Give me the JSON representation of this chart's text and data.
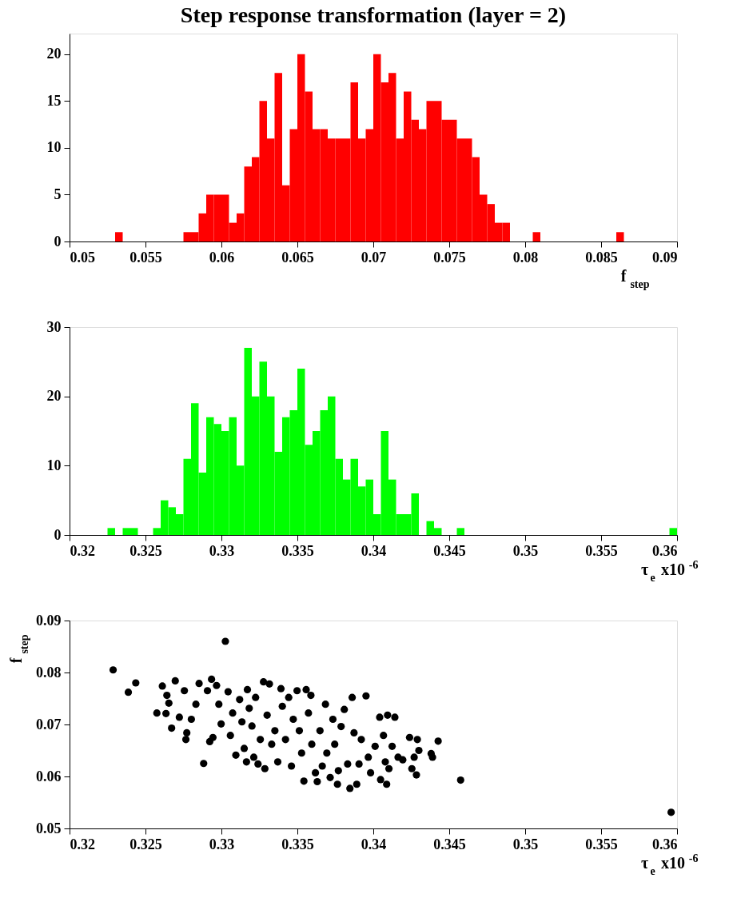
{
  "chart_data": [
    {
      "type": "histogram",
      "title": "Step response transformation (layer = 2)",
      "xlabel": "f$_{step}$",
      "color": "#ff0000",
      "xlim": [
        0.05,
        0.09
      ],
      "ylim": [
        0,
        22.2
      ],
      "xticks": [
        0.05,
        0.055,
        0.06,
        0.065,
        0.07,
        0.075,
        0.08,
        0.085,
        0.09
      ],
      "yticks": [
        0,
        5,
        10,
        15,
        20
      ],
      "bins": [
        0.05,
        0.0505,
        0.051,
        0.0515,
        0.052,
        0.0525,
        0.053,
        0.0535,
        0.054,
        0.0545,
        0.055,
        0.0555,
        0.056,
        0.0565,
        0.057,
        0.0575,
        0.058,
        0.0585,
        0.059,
        0.0595,
        0.06,
        0.0605,
        0.061,
        0.0615,
        0.062,
        0.0625,
        0.063,
        0.0635,
        0.064,
        0.0645,
        0.065,
        0.0655,
        0.066,
        0.0665,
        0.067,
        0.0675,
        0.068,
        0.0685,
        0.069,
        0.0695,
        0.07,
        0.0705,
        0.071,
        0.0715,
        0.072,
        0.0725,
        0.073,
        0.0735,
        0.074,
        0.0745,
        0.075,
        0.0755,
        0.076,
        0.0765,
        0.077,
        0.0775,
        0.078,
        0.0785,
        0.079,
        0.0795,
        0.08,
        0.0805,
        0.081,
        0.0815,
        0.082,
        0.0825,
        0.083,
        0.0835,
        0.084,
        0.0845,
        0.085,
        0.0855,
        0.086,
        0.0865,
        0.087,
        0.0875,
        0.088,
        0.0885,
        0.089,
        0.0895,
        0.09
      ],
      "values": [
        0,
        0,
        0,
        0,
        0,
        0,
        1,
        0,
        0,
        0,
        0,
        0,
        0,
        0,
        0,
        1,
        1,
        3,
        5,
        5,
        5,
        2,
        3,
        8,
        9,
        15,
        11,
        18,
        6,
        12,
        20,
        16,
        12,
        12,
        11,
        11,
        11,
        17,
        11,
        12,
        20,
        17,
        18,
        11,
        16,
        13,
        12,
        15,
        15,
        13,
        13,
        11,
        11,
        9,
        5,
        4,
        2,
        2,
        0,
        0,
        0,
        1,
        0,
        0,
        0,
        0,
        0,
        0,
        0,
        0,
        0,
        0,
        1,
        0,
        0,
        0,
        0,
        0,
        0,
        0
      ]
    },
    {
      "type": "histogram",
      "xlabel": "τ$_{e}$",
      "annotations": [
        "x10$^{-6}$"
      ],
      "color": "#00ff00",
      "xlim": [
        0.32,
        0.36
      ],
      "ylim": [
        0,
        30
      ],
      "xticks": [
        0.32,
        0.325,
        0.33,
        0.335,
        0.34,
        0.345,
        0.35,
        0.355,
        0.36
      ],
      "yticks": [
        0,
        10,
        20,
        30
      ],
      "bins": [
        0.32,
        0.3205,
        0.321,
        0.3215,
        0.322,
        0.3225,
        0.323,
        0.3235,
        0.324,
        0.3245,
        0.325,
        0.3255,
        0.326,
        0.3265,
        0.327,
        0.3275,
        0.328,
        0.3285,
        0.329,
        0.3295,
        0.33,
        0.3305,
        0.331,
        0.3315,
        0.332,
        0.3325,
        0.333,
        0.3335,
        0.334,
        0.3345,
        0.335,
        0.3355,
        0.336,
        0.3365,
        0.337,
        0.3375,
        0.338,
        0.3385,
        0.339,
        0.3395,
        0.34,
        0.3405,
        0.341,
        0.3415,
        0.342,
        0.3425,
        0.343,
        0.3435,
        0.344,
        0.3445,
        0.345,
        0.3455,
        0.346,
        0.3465,
        0.347,
        0.3475,
        0.348,
        0.3485,
        0.349,
        0.3495,
        0.35,
        0.3505,
        0.351,
        0.3515,
        0.352,
        0.3525,
        0.353,
        0.3535,
        0.354,
        0.3545,
        0.355,
        0.3555,
        0.356,
        0.3565,
        0.357,
        0.3575,
        0.358,
        0.3585,
        0.359,
        0.3595,
        0.36
      ],
      "values": [
        0,
        0,
        0,
        0,
        0,
        1,
        0,
        1,
        1,
        0,
        0,
        1,
        5,
        4,
        3,
        11,
        19,
        9,
        17,
        16,
        15,
        17,
        10,
        27,
        20,
        25,
        20,
        12,
        17,
        18,
        24,
        13,
        15,
        18,
        20,
        11,
        8,
        11,
        7,
        8,
        3,
        15,
        8,
        3,
        3,
        6,
        0,
        2,
        1,
        0,
        0,
        1,
        0,
        0,
        0,
        0,
        0,
        0,
        0,
        0,
        0,
        0,
        0,
        0,
        0,
        0,
        0,
        0,
        0,
        0,
        0,
        0,
        0,
        0,
        0,
        0,
        0,
        0,
        0,
        1
      ]
    },
    {
      "type": "scatter",
      "xlabel": "τ$_{e}$",
      "ylabel": "f$_{step}$",
      "annotations": [
        "x10$^{-6}$"
      ],
      "color": "#000000",
      "marker": "circle",
      "xlim": [
        0.32,
        0.36
      ],
      "ylim": [
        0.05,
        0.09
      ],
      "xticks": [
        0.32,
        0.325,
        0.33,
        0.335,
        0.34,
        0.345,
        0.35,
        0.355,
        0.36
      ],
      "yticks": [
        0.05,
        0.06,
        0.07,
        0.08,
        0.09
      ],
      "x": [
        0.32287,
        0.33026,
        0.32387,
        0.32436,
        0.32575,
        0.32611,
        0.32635,
        0.32641,
        0.32654,
        0.32672,
        0.32696,
        0.32723,
        0.32756,
        0.32766,
        0.32772,
        0.32802,
        0.32853,
        0.32832,
        0.32883,
        0.32908,
        0.32923,
        0.32935,
        0.32944,
        0.32968,
        0.32983,
        0.32998,
        0.33044,
        0.33059,
        0.33074,
        0.33095,
        0.3312,
        0.33135,
        0.3315,
        0.33165,
        0.33171,
        0.33183,
        0.33201,
        0.33213,
        0.33225,
        0.33241,
        0.33256,
        0.33277,
        0.33286,
        0.33301,
        0.33316,
        0.33331,
        0.33352,
        0.33371,
        0.33392,
        0.33401,
        0.33422,
        0.33443,
        0.33461,
        0.33473,
        0.33498,
        0.33513,
        0.33528,
        0.33543,
        0.33558,
        0.33573,
        0.33589,
        0.33595,
        0.33619,
        0.33631,
        0.33649,
        0.33664,
        0.33685,
        0.33694,
        0.33716,
        0.33734,
        0.33746,
        0.33764,
        0.3377,
        0.33788,
        0.33809,
        0.33831,
        0.33846,
        0.33861,
        0.33873,
        0.33891,
        0.33906,
        0.33921,
        0.33952,
        0.33967,
        0.33982,
        0.34012,
        0.34042,
        0.34048,
        0.34067,
        0.34079,
        0.34094,
        0.34088,
        0.34103,
        0.34124,
        0.34142,
        0.34163,
        0.34194,
        0.34239,
        0.34254,
        0.34269,
        0.34284,
        0.3429,
        0.343,
        0.34381,
        0.3439,
        0.34427,
        0.34575,
        0.35961
      ],
      "values": [
        0.0805,
        0.086,
        0.0762,
        0.078,
        0.0722,
        0.0774,
        0.0721,
        0.0756,
        0.0741,
        0.0693,
        0.0784,
        0.0714,
        0.0765,
        0.0671,
        0.0684,
        0.071,
        0.0779,
        0.0739,
        0.0625,
        0.0765,
        0.0667,
        0.0787,
        0.0675,
        0.0775,
        0.0739,
        0.0701,
        0.0763,
        0.0679,
        0.0722,
        0.0641,
        0.0748,
        0.0705,
        0.0654,
        0.0628,
        0.0767,
        0.0731,
        0.0697,
        0.0637,
        0.0752,
        0.0624,
        0.0671,
        0.0782,
        0.0615,
        0.0718,
        0.0778,
        0.0662,
        0.0688,
        0.0628,
        0.0769,
        0.0735,
        0.0671,
        0.0752,
        0.062,
        0.071,
        0.0765,
        0.0688,
        0.0645,
        0.0591,
        0.0767,
        0.0722,
        0.0756,
        0.0662,
        0.0607,
        0.059,
        0.0688,
        0.062,
        0.0739,
        0.0645,
        0.0598,
        0.071,
        0.0662,
        0.0585,
        0.0611,
        0.0696,
        0.0729,
        0.0624,
        0.0577,
        0.0752,
        0.0684,
        0.0585,
        0.0624,
        0.0671,
        0.0755,
        0.0637,
        0.0607,
        0.0658,
        0.0714,
        0.0594,
        0.0679,
        0.0628,
        0.0718,
        0.0585,
        0.0615,
        0.0658,
        0.0714,
        0.0637,
        0.0632,
        0.0675,
        0.0615,
        0.0637,
        0.0603,
        0.0671,
        0.065,
        0.0644,
        0.0637,
        0.0668,
        0.0593,
        0.0531
      ]
    }
  ]
}
